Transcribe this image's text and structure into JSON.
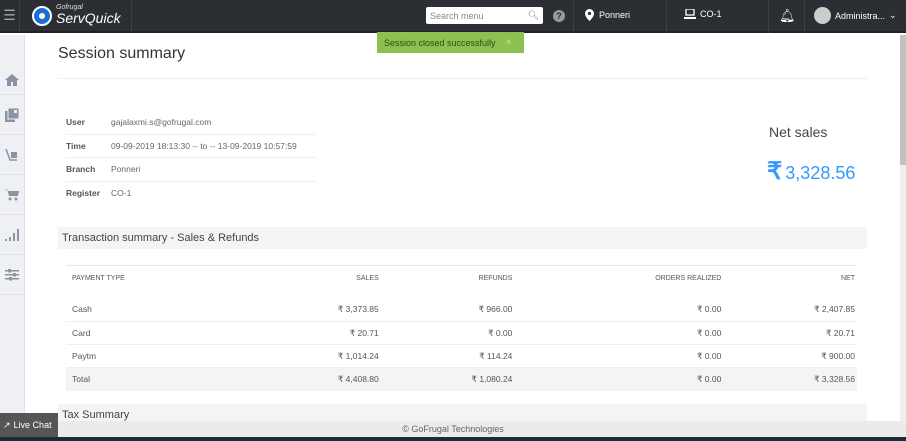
{
  "header": {
    "brand_small": "Gofrugal",
    "brand": "ServQuick",
    "search_placeholder": "Search menu",
    "location": "Ponneri",
    "register": "CO-1",
    "user": "Administra..."
  },
  "toast": {
    "message": "Session closed successfully",
    "close": "×"
  },
  "sidebar": {
    "items": [
      "home-icon",
      "reports-icon",
      "inventory-icon",
      "cart-icon",
      "analytics-icon",
      "settings-icon"
    ]
  },
  "page": {
    "title": "Session summary"
  },
  "session": [
    {
      "label": "User",
      "value": "gajalaxmi.s@gofrugal.com"
    },
    {
      "label": "Time",
      "value": "09-09-2019 18:13:30 -- to -- 13-09-2019 10:57:59"
    },
    {
      "label": "Branch",
      "value": "Ponneri"
    },
    {
      "label": "Register",
      "value": "CO-1"
    }
  ],
  "net_sales": {
    "label": "Net sales",
    "currency": "₹",
    "value": "3,328.56",
    "color": "#3399ff"
  },
  "transaction": {
    "title": "Transaction summary - Sales & Refunds",
    "columns": [
      "PAYMENT TYPE",
      "SALES",
      "REFUNDS",
      "ORDERS REALIZED",
      "NET"
    ],
    "rows": [
      [
        "Cash",
        "₹ 3,373.85",
        "₹ 966.00",
        "₹ 0.00",
        "₹ 2,407.85"
      ],
      [
        "Card",
        "₹ 20.71",
        "₹ 0.00",
        "₹ 0.00",
        "₹ 20.71"
      ],
      [
        "Paytm",
        "₹ 1,014.24",
        "₹ 114.24",
        "₹ 0.00",
        "₹ 900.00"
      ]
    ],
    "total": [
      "Total",
      "₹ 4,408.80",
      "₹ 1,080.24",
      "₹ 0.00",
      "₹ 3,328.56"
    ]
  },
  "tax": {
    "title": "Tax Summary"
  },
  "footer": {
    "text": "© GoFrugal Technologies",
    "live_chat": "Live Chat"
  }
}
